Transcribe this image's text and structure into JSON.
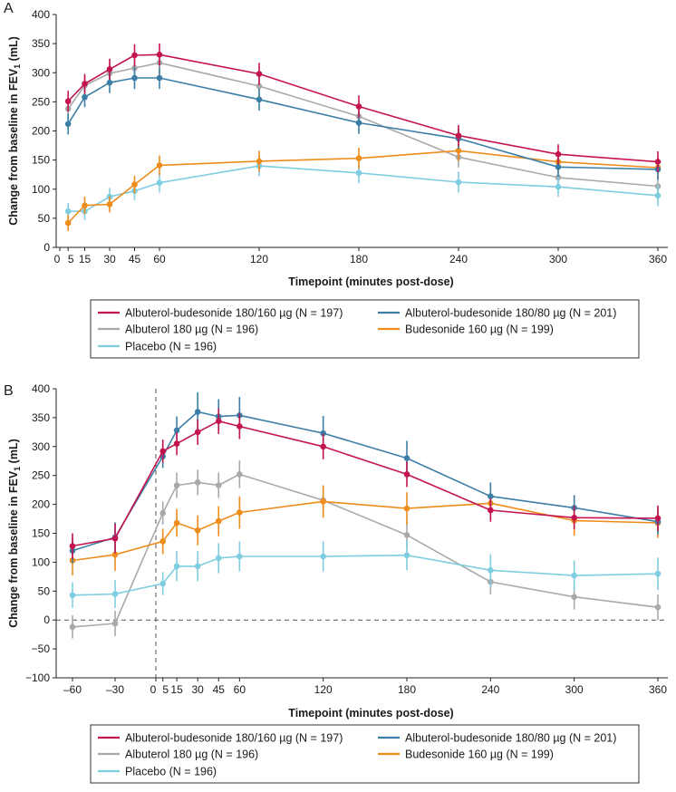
{
  "chart_data": [
    {
      "panel": "A",
      "type": "line",
      "xlabel": "Timepoint (minutes post-dose)",
      "ylabel_main": "Change from baseline in FEV",
      "ylabel_sub": "1",
      "ylabel_tail": " (mL)",
      "xlim": [
        0,
        360
      ],
      "ylim": [
        0,
        400
      ],
      "yticks": [
        0,
        50,
        100,
        150,
        200,
        250,
        300,
        350,
        400
      ],
      "xticks": [
        {
          "v": 0,
          "label": "0"
        },
        {
          "v": 5,
          "label": "5"
        },
        {
          "v": 15,
          "label": "15"
        },
        {
          "v": 30,
          "label": "30"
        },
        {
          "v": 45,
          "label": "45"
        },
        {
          "v": 60,
          "label": "60"
        },
        {
          "v": 120,
          "label": "120"
        },
        {
          "v": 180,
          "label": "180"
        },
        {
          "v": 240,
          "label": "240"
        },
        {
          "v": 300,
          "label": "300"
        },
        {
          "v": 360,
          "label": "360"
        }
      ],
      "zero_line": false,
      "series": [
        {
          "name": "Albuterol-budesonide 180/160 µg (N = 197)",
          "color": "#c4144f",
          "x": [
            5,
            15,
            30,
            45,
            60,
            120,
            180,
            240,
            300,
            360
          ],
          "y": [
            251,
            281,
            306,
            330,
            331,
            298,
            242,
            192,
            160,
            147
          ],
          "err": [
            18,
            17,
            18,
            19,
            19,
            19,
            19,
            18,
            17,
            18
          ]
        },
        {
          "name": "Albuterol-budesonide 180/80 µg (N = 201)",
          "color": "#3c7ea6",
          "x": [
            5,
            15,
            30,
            45,
            60,
            120,
            180,
            240,
            300,
            360
          ],
          "y": [
            212,
            258,
            283,
            291,
            291,
            254,
            214,
            187,
            138,
            134
          ],
          "err": [
            18,
            17,
            18,
            19,
            19,
            19,
            19,
            18,
            17,
            18
          ]
        },
        {
          "name": "Albuterol 180 µg (N = 196)",
          "color": "#a9a9a9",
          "x": [
            5,
            15,
            30,
            45,
            60,
            120,
            180,
            240,
            300,
            360
          ],
          "y": [
            238,
            278,
            299,
            308,
            317,
            277,
            225,
            155,
            120,
            105
          ],
          "err": [
            18,
            17,
            18,
            19,
            19,
            19,
            19,
            18,
            17,
            18
          ]
        },
        {
          "name": "Budesonide 160 µg (N = 199)",
          "color": "#ee8c1c",
          "x": [
            5,
            15,
            30,
            45,
            60,
            120,
            180,
            240,
            300,
            360
          ],
          "y": [
            42,
            72,
            74,
            108,
            141,
            148,
            153,
            166,
            147,
            137
          ],
          "err": [
            14,
            15,
            14,
            15,
            17,
            18,
            18,
            18,
            17,
            18
          ]
        },
        {
          "name": "Placebo (N = 196)",
          "color": "#7fcde0",
          "x": [
            5,
            15,
            30,
            45,
            60,
            120,
            180,
            240,
            300,
            360
          ],
          "y": [
            62,
            62,
            87,
            97,
            111,
            140,
            128,
            112,
            104,
            89
          ],
          "err": [
            14,
            15,
            15,
            16,
            17,
            18,
            18,
            18,
            17,
            18
          ]
        }
      ]
    },
    {
      "panel": "B",
      "type": "line",
      "xlabel": "Timepoint (minutes post-dose)",
      "ylabel_main": "Change from baseline in FEV",
      "ylabel_sub": "1",
      "ylabel_tail": " (mL)",
      "xlim": [
        -60,
        360
      ],
      "ylim": [
        -100,
        400
      ],
      "yticks": [
        -100,
        -50,
        0,
        50,
        100,
        150,
        200,
        250,
        300,
        350,
        400
      ],
      "xticks": [
        {
          "v": -60,
          "label": "–60"
        },
        {
          "v": -30,
          "label": "–30"
        },
        {
          "v": 0,
          "label": "0"
        },
        {
          "v": 5,
          "label": "5"
        },
        {
          "v": 15,
          "label": "15"
        },
        {
          "v": 30,
          "label": "30"
        },
        {
          "v": 45,
          "label": "45"
        },
        {
          "v": 60,
          "label": "60"
        },
        {
          "v": 120,
          "label": "120"
        },
        {
          "v": 180,
          "label": "180"
        },
        {
          "v": 240,
          "label": "240"
        },
        {
          "v": 300,
          "label": "300"
        },
        {
          "v": 360,
          "label": "360"
        }
      ],
      "zero_line": true,
      "dose_line_x": 0,
      "series": [
        {
          "name": "Albuterol-budesonide 180/160 µg (N = 197)",
          "color": "#c4144f",
          "x": [
            -60,
            -30,
            5,
            15,
            30,
            45,
            60,
            120,
            180,
            240,
            300,
            360
          ],
          "y": [
            128,
            141,
            292,
            305,
            325,
            344,
            335,
            300,
            252,
            190,
            177,
            176
          ],
          "err": [
            22,
            26,
            20,
            20,
            22,
            22,
            22,
            22,
            22,
            20,
            20,
            22
          ]
        },
        {
          "name": "Albuterol-budesonide 180/80 µg (N = 201)",
          "color": "#3c7ea6",
          "x": [
            -60,
            -30,
            5,
            15,
            30,
            45,
            60,
            120,
            180,
            240,
            300,
            360
          ],
          "y": [
            120,
            143,
            283,
            328,
            360,
            352,
            354,
            323,
            280,
            214,
            194,
            170
          ],
          "err": [
            22,
            26,
            20,
            24,
            34,
            30,
            32,
            30,
            30,
            24,
            22,
            22
          ]
        },
        {
          "name": "Albuterol 180 µg (N = 196)",
          "color": "#a9a9a9",
          "x": [
            -60,
            -30,
            5,
            15,
            30,
            45,
            60,
            120,
            180,
            240,
            300,
            360
          ],
          "y": [
            -12,
            -6,
            185,
            233,
            238,
            233,
            252,
            207,
            147,
            66,
            40,
            22
          ],
          "err": [
            20,
            22,
            20,
            22,
            22,
            22,
            24,
            24,
            24,
            22,
            22,
            22
          ]
        },
        {
          "name": "Budesonide 160 µg (N = 199)",
          "color": "#ee8c1c",
          "x": [
            -60,
            -30,
            5,
            15,
            30,
            45,
            60,
            120,
            180,
            240,
            300,
            360
          ],
          "y": [
            103,
            113,
            136,
            168,
            155,
            171,
            186,
            205,
            193,
            202,
            172,
            168
          ],
          "err": [
            26,
            28,
            22,
            24,
            26,
            26,
            28,
            28,
            28,
            28,
            26,
            26
          ]
        },
        {
          "name": "Placebo (N = 196)",
          "color": "#7fcde0",
          "x": [
            -60,
            -30,
            5,
            15,
            30,
            45,
            60,
            120,
            180,
            240,
            300,
            360
          ],
          "y": [
            43,
            45,
            63,
            93,
            93,
            107,
            110,
            110,
            112,
            86,
            77,
            80
          ],
          "err": [
            22,
            24,
            20,
            26,
            26,
            26,
            26,
            26,
            26,
            28,
            26,
            28
          ]
        }
      ]
    }
  ]
}
